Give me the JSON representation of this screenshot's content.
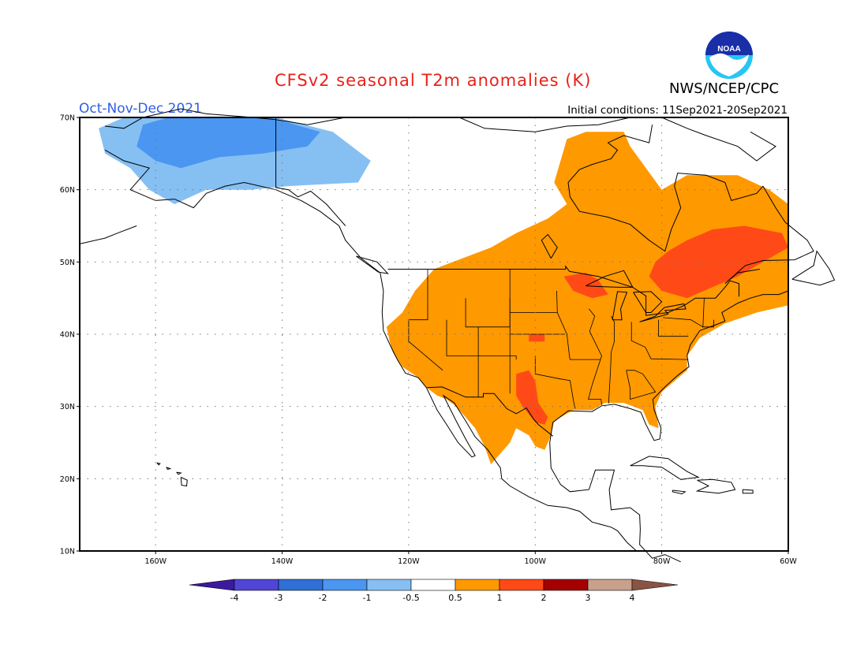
{
  "header": {
    "title": "CFSv2 seasonal T2m anomalies (K)",
    "agency": "NWS/NCEP/CPC",
    "period": "Oct-Nov-Dec 2021",
    "initial_conditions": "Initial conditions: 11Sep2021-20Sep2021",
    "logo_text": "NOAA"
  },
  "map": {
    "lat_labels": [
      "70N",
      "60N",
      "50N",
      "40N",
      "30N",
      "20N",
      "10N"
    ],
    "lon_labels": [
      "160W",
      "140W",
      "120W",
      "100W",
      "80W",
      "60W"
    ],
    "extent": {
      "lon_min": -172,
      "lon_max": -60,
      "lat_min": 10,
      "lat_max": 70
    }
  },
  "colorbar": {
    "labels": [
      "-4",
      "-3",
      "-2",
      "-1",
      "-0.5",
      "0.5",
      "1",
      "2",
      "3",
      "4"
    ],
    "colors": [
      "#3c1aa0",
      "#5046d6",
      "#2f6fd6",
      "#4a96f0",
      "#86bff2",
      "#ffffff",
      "#ff9900",
      "#ff4a17",
      "#a50000",
      "#c8a08c",
      "#8a5444"
    ]
  },
  "colors": {
    "cold_1": "#86bff2",
    "cold_2": "#4a96f0",
    "warm_1": "#ff9900",
    "warm_2": "#ff4a17"
  }
}
